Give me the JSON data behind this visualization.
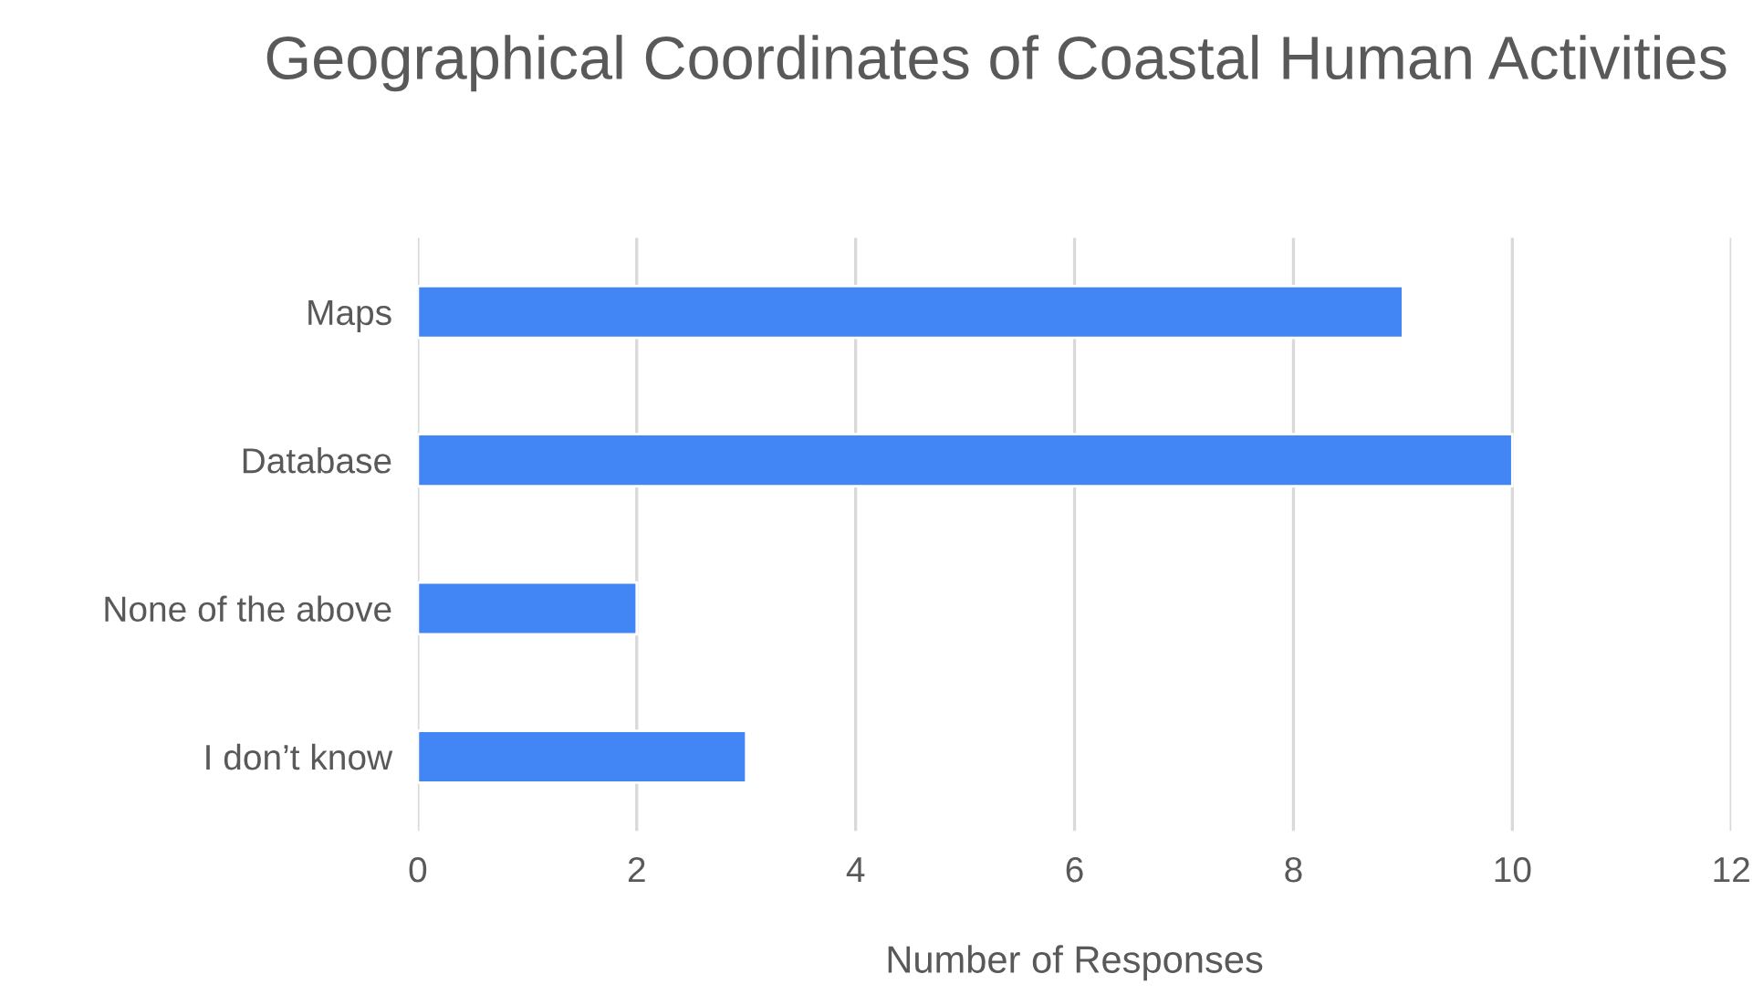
{
  "chart_data": {
    "type": "bar",
    "orientation": "horizontal",
    "title": "Geographical Coordinates of Coastal Human Activities",
    "xlabel": "Number of Responses",
    "categories": [
      "Maps",
      "Database",
      "None of the above",
      "I don’t know"
    ],
    "values": [
      9,
      10,
      2,
      3
    ],
    "color": "#4285f4",
    "xlim": [
      0,
      12
    ],
    "xticks": [
      0,
      2,
      4,
      6,
      8,
      10,
      12
    ],
    "grid": "x"
  }
}
